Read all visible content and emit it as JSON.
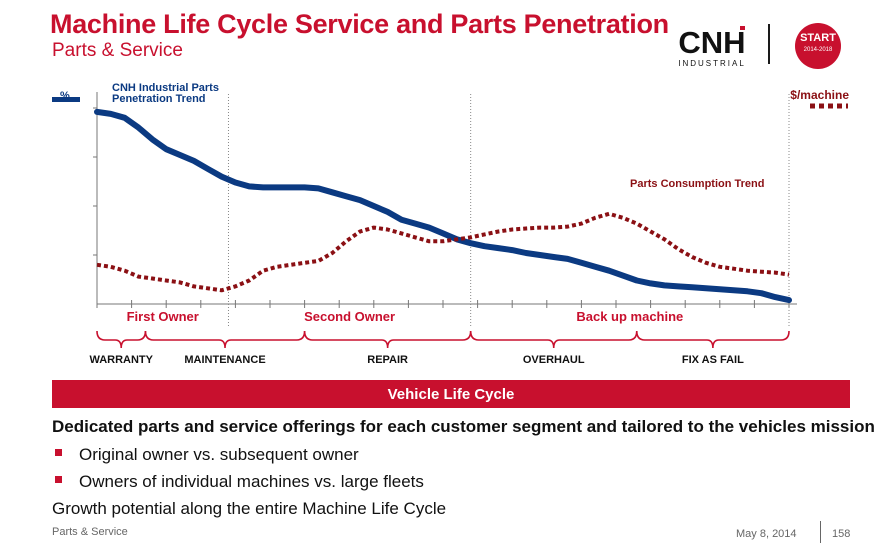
{
  "header": {
    "title": "Machine Life Cycle Service and Parts Penetration",
    "subtitle": "Parts & Service",
    "logo_text": "CNH",
    "logo_subtext": "INDUSTRIAL",
    "badge_text": "START",
    "badge_years": "2014-2018"
  },
  "chart_data": {
    "type": "line",
    "title": "",
    "y_left_label": "%",
    "y_right_label": "$/machine",
    "x": [
      0,
      2,
      4,
      6,
      8,
      10,
      12,
      14,
      16,
      18,
      20,
      22,
      24,
      26,
      28,
      30,
      32,
      34,
      36,
      38,
      40,
      42,
      44,
      46,
      48,
      50,
      52,
      54,
      56,
      58,
      60,
      62,
      64,
      66,
      68,
      70,
      72,
      74,
      76,
      78,
      80,
      82,
      84,
      86,
      88,
      90,
      92,
      94,
      96,
      98,
      100
    ],
    "xlim": [
      0,
      100
    ],
    "ylim": [
      0,
      100
    ],
    "series": [
      {
        "name": "CNH Industrial Parts Penetration Trend",
        "color": "#0b3a82",
        "style": "solid",
        "values": [
          98,
          97,
          95,
          90,
          84,
          79,
          76,
          73,
          69,
          65,
          62,
          60,
          59.5,
          59.5,
          59.5,
          59.5,
          59,
          57,
          55,
          53,
          50,
          47,
          43,
          41,
          39,
          36,
          33,
          31,
          29.5,
          28.5,
          27.5,
          26,
          25,
          24,
          23,
          21,
          19,
          17,
          14.5,
          12,
          10.5,
          9.5,
          9,
          8.5,
          8,
          7.5,
          7,
          6.5,
          5.5,
          3.5,
          2
        ]
      },
      {
        "name": "Parts Consumption Trend",
        "color": "#8b1014",
        "style": "dotted",
        "values": [
          20,
          19,
          17,
          14,
          13,
          12,
          11,
          9,
          8,
          7,
          9,
          12,
          17,
          19,
          20,
          21,
          22,
          26,
          32,
          37,
          39,
          38,
          36,
          34,
          32,
          32,
          33,
          34,
          35.5,
          37,
          38,
          38.5,
          39,
          39,
          39.5,
          41,
          44,
          46,
          44,
          41,
          37,
          33,
          28,
          24,
          21,
          19,
          18,
          17,
          16.5,
          16,
          15
        ]
      }
    ],
    "series_labels": {
      "penetration_line1": "CNH Industrial Parts",
      "penetration_line2": "Penetration Trend",
      "consumption": "Parts Consumption Trend"
    },
    "owner_phases": [
      {
        "label": "First Owner",
        "start": 0,
        "end": 19
      },
      {
        "label": "Second Owner",
        "start": 19,
        "end": 54
      },
      {
        "label": "Back up machine",
        "start": 54,
        "end": 100
      }
    ],
    "owner_boundaries": [
      19,
      54,
      100
    ],
    "service_phases": [
      {
        "label": "WARRANTY",
        "start": 0,
        "end": 7
      },
      {
        "label": "MAINTENANCE",
        "start": 7,
        "end": 30
      },
      {
        "label": "REPAIR",
        "start": 30,
        "end": 54
      },
      {
        "label": "OVERHAUL",
        "start": 54,
        "end": 78
      },
      {
        "label": "FIX AS FAIL",
        "start": 78,
        "end": 100
      }
    ],
    "xlabel": "Vehicle Life Cycle",
    "grid": false
  },
  "body": {
    "headline": "Dedicated parts and service offerings for each customer segment and tailored to the vehicles mission",
    "bullets": [
      "Original owner vs. subsequent owner",
      "Owners of individual machines vs. large fleets"
    ],
    "growth": "Growth potential along the entire Machine Life Cycle"
  },
  "footer": {
    "left": "Parts & Service",
    "date": "May 8, 2014",
    "page": "158"
  }
}
